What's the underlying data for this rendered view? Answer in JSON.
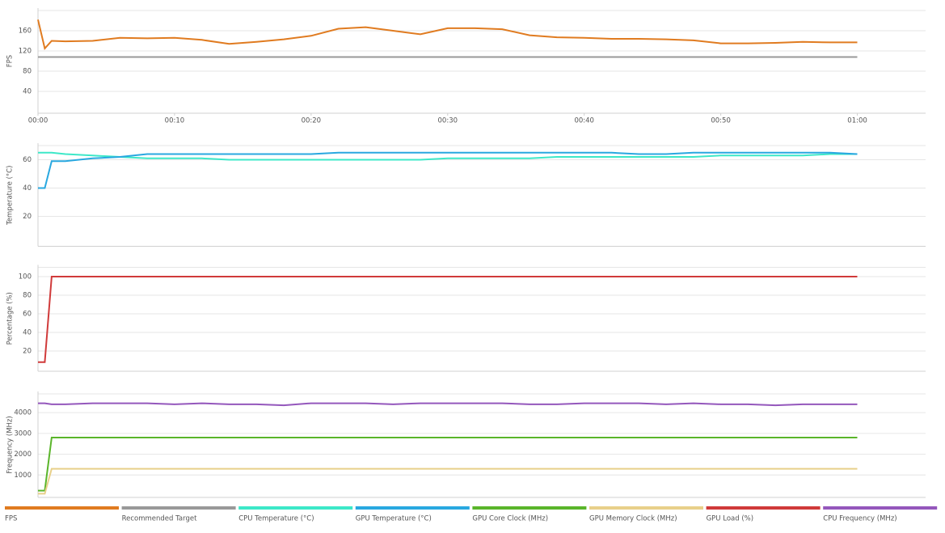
{
  "chart_data": [
    {
      "type": "line",
      "ylabel": "FPS",
      "x": [
        0,
        0.5,
        1,
        2,
        4,
        6,
        8,
        10,
        12,
        14,
        16,
        18,
        20,
        22,
        24,
        26,
        28,
        30,
        32,
        34,
        36,
        38,
        40,
        42,
        44,
        46,
        48,
        50,
        52,
        54,
        56,
        58,
        60
      ],
      "xlim": [
        0,
        65
      ],
      "xticks": [
        {
          "value": 0,
          "label": "00:00"
        },
        {
          "value": 10,
          "label": "00:10"
        },
        {
          "value": 20,
          "label": "00:20"
        },
        {
          "value": 30,
          "label": "00:30"
        },
        {
          "value": 40,
          "label": "00:40"
        },
        {
          "value": 50,
          "label": "00:50"
        },
        {
          "value": 60,
          "label": "01:00"
        }
      ],
      "ylim": [
        0,
        200
      ],
      "yticks": [
        40,
        80,
        120,
        160
      ],
      "grid": true,
      "series": [
        {
          "name": "FPS",
          "color": "#e07b20",
          "values": [
            182,
            125,
            140,
            139,
            140,
            146,
            145,
            146,
            142,
            134,
            138,
            143,
            150,
            164,
            167,
            160,
            153,
            165,
            165,
            163,
            151,
            147,
            146,
            144,
            144,
            143,
            141,
            135,
            135,
            136,
            138,
            137,
            137
          ]
        },
        {
          "name": "Recommended Target",
          "color": "#999999",
          "values": [
            108,
            108,
            108,
            108,
            108,
            108,
            108,
            108,
            108,
            108,
            108,
            108,
            108,
            108,
            108,
            108,
            108,
            108,
            108,
            108,
            108,
            108,
            108,
            108,
            108,
            108,
            108,
            108,
            108,
            108,
            108,
            108,
            108
          ]
        }
      ]
    },
    {
      "type": "line",
      "ylabel": "Temperature (°C)",
      "x": [
        0,
        0.5,
        1,
        2,
        4,
        6,
        8,
        10,
        12,
        14,
        16,
        18,
        20,
        22,
        24,
        26,
        28,
        30,
        32,
        34,
        36,
        38,
        40,
        42,
        44,
        46,
        48,
        50,
        52,
        54,
        56,
        58,
        60
      ],
      "xlim": [
        0,
        65
      ],
      "ylim": [
        0,
        70
      ],
      "yticks": [
        20,
        40,
        60
      ],
      "grid": true,
      "series": [
        {
          "name": "CPU Temperature (°C)",
          "color": "#3de8c8",
          "values": [
            65,
            65,
            65,
            64,
            63,
            62,
            61,
            61,
            61,
            60,
            60,
            60,
            60,
            60,
            60,
            60,
            60,
            61,
            61,
            61,
            61,
            62,
            62,
            62,
            62,
            62,
            62,
            63,
            63,
            63,
            63,
            64,
            64
          ]
        },
        {
          "name": "GPU Temperature (°C)",
          "color": "#29a8e0",
          "values": [
            40,
            40,
            59,
            59,
            61,
            62,
            64,
            64,
            64,
            64,
            64,
            64,
            64,
            65,
            65,
            65,
            65,
            65,
            65,
            65,
            65,
            65,
            65,
            65,
            64,
            64,
            65,
            65,
            65,
            65,
            65,
            65,
            64
          ]
        }
      ]
    },
    {
      "type": "line",
      "ylabel": "Percentage (%)",
      "x": [
        0,
        0.5,
        1,
        2,
        4,
        6,
        8,
        10,
        12,
        14,
        16,
        18,
        20,
        22,
        24,
        26,
        28,
        30,
        32,
        34,
        36,
        38,
        40,
        42,
        44,
        46,
        48,
        50,
        52,
        54,
        56,
        58,
        60
      ],
      "xlim": [
        0,
        65
      ],
      "ylim": [
        0,
        110
      ],
      "yticks": [
        20,
        40,
        60,
        80,
        100
      ],
      "grid": true,
      "series": [
        {
          "name": "GPU Load (%)",
          "color": "#d03a3a",
          "values": [
            8,
            8,
            100,
            100,
            100,
            100,
            100,
            100,
            100,
            100,
            100,
            100,
            100,
            100,
            100,
            100,
            100,
            100,
            100,
            100,
            100,
            100,
            100,
            100,
            100,
            100,
            100,
            100,
            100,
            100,
            100,
            100,
            100
          ]
        }
      ]
    },
    {
      "type": "line",
      "ylabel": "Frequency (MHz)",
      "x": [
        0,
        0.5,
        1,
        2,
        4,
        6,
        8,
        10,
        12,
        14,
        16,
        18,
        20,
        22,
        24,
        26,
        28,
        30,
        32,
        34,
        36,
        38,
        40,
        42,
        44,
        46,
        48,
        50,
        52,
        54,
        56,
        58,
        60
      ],
      "xlim": [
        0,
        65
      ],
      "ylim": [
        0,
        4900
      ],
      "yticks": [
        1000,
        2000,
        3000,
        4000
      ],
      "grid": true,
      "series": [
        {
          "name": "GPU Core Clock (MHz)",
          "color": "#5ab52a",
          "values": [
            250,
            250,
            2800,
            2800,
            2800,
            2800,
            2800,
            2800,
            2800,
            2800,
            2800,
            2800,
            2800,
            2800,
            2800,
            2800,
            2800,
            2800,
            2800,
            2800,
            2800,
            2800,
            2800,
            2800,
            2800,
            2800,
            2800,
            2800,
            2800,
            2800,
            2800,
            2800,
            2800
          ]
        },
        {
          "name": "GPU Memory Clock (MHz)",
          "color": "#e8d08a",
          "values": [
            100,
            100,
            1300,
            1300,
            1300,
            1300,
            1300,
            1300,
            1300,
            1300,
            1300,
            1300,
            1300,
            1300,
            1300,
            1300,
            1300,
            1300,
            1300,
            1300,
            1300,
            1300,
            1300,
            1300,
            1300,
            1300,
            1300,
            1300,
            1300,
            1300,
            1300,
            1300,
            1300
          ]
        },
        {
          "name": "CPU Frequency (MHz)",
          "color": "#9457bc",
          "values": [
            4450,
            4450,
            4400,
            4400,
            4450,
            4450,
            4450,
            4400,
            4450,
            4400,
            4400,
            4350,
            4450,
            4450,
            4450,
            4400,
            4450,
            4450,
            4450,
            4450,
            4400,
            4400,
            4450,
            4450,
            4450,
            4400,
            4450,
            4400,
            4400,
            4350,
            4400,
            4400,
            4400
          ]
        }
      ]
    }
  ]
}
